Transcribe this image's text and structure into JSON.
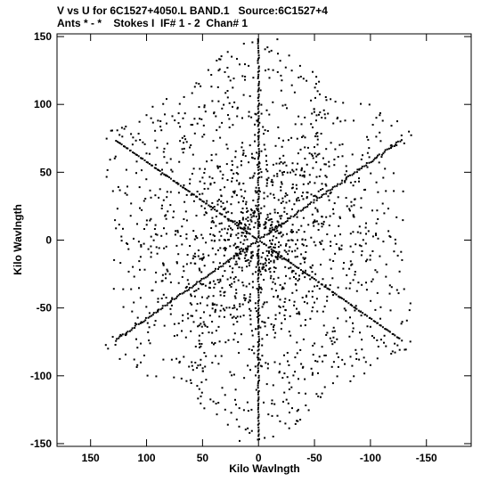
{
  "header": {
    "line1": "V vs U for 6C1527+4050.L BAND.1   Source:6C1527+4",
    "line2": "Ants * - *    Stokes I  IF# 1 - 2  Chan# 1"
  },
  "chart_data": {
    "type": "scatter",
    "xlabel": "Kilo Wavlngth",
    "ylabel": "Kilo Wavlngth",
    "xlim": [
      180,
      -190
    ],
    "ylim": [
      -152,
      152
    ],
    "x_ticks": [
      150,
      100,
      50,
      0,
      -50,
      -100,
      -150
    ],
    "y_ticks": [
      150,
      100,
      50,
      0,
      -50,
      -100,
      -150
    ],
    "grid": false,
    "legend": "none",
    "marker_color": "#000000",
    "pattern": {
      "description_values": "uv-coverage of a Y-shaped array: six arms at 0/60/120/180/240/300 degrees, symmetric points (u,v) and (-u,-v)",
      "arm_angles_deg": [
        90,
        150,
        210,
        270,
        330,
        30
      ],
      "max_radius": 148,
      "inner_ring_radius": 95
    }
  }
}
